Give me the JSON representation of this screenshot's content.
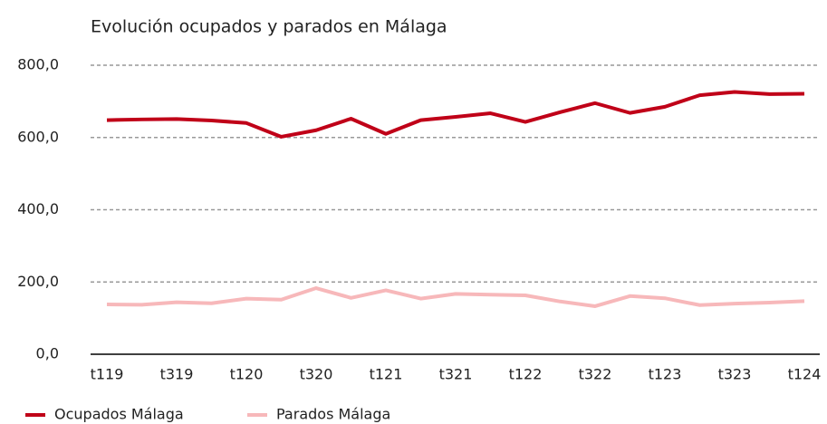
{
  "chart_data": {
    "type": "line",
    "title": "Evolución ocupados y parados en Málaga",
    "categories": [
      "t119",
      null,
      "t319",
      null,
      "t120",
      null,
      "t320",
      null,
      "t121",
      null,
      "t321",
      null,
      "t122",
      null,
      "t322",
      null,
      "t123",
      null,
      "t323",
      null,
      "t124"
    ],
    "series": [
      {
        "name": "Ocupados Málaga",
        "color": "#c00018",
        "values": [
          648,
          650,
          651,
          647,
          640,
          602,
          620,
          652,
          610,
          648,
          657,
          667,
          643,
          670,
          695,
          668,
          685,
          717,
          726,
          720,
          721
        ]
      },
      {
        "name": "Parados Málaga",
        "color": "#f7b8ba",
        "values": [
          138,
          137,
          144,
          141,
          154,
          151,
          183,
          156,
          177,
          154,
          167,
          165,
          163,
          146,
          133,
          161,
          155,
          136,
          140,
          143,
          147
        ]
      }
    ],
    "ylim": [
      0,
      800
    ],
    "yticks": [
      {
        "value": 0,
        "label": "0,0"
      },
      {
        "value": 200,
        "label": "200,0"
      },
      {
        "value": 400,
        "label": "400,0"
      },
      {
        "value": 600,
        "label": "600,0"
      },
      {
        "value": 800,
        "label": "800,0"
      }
    ],
    "grid": true,
    "legend": "bottom-left"
  }
}
